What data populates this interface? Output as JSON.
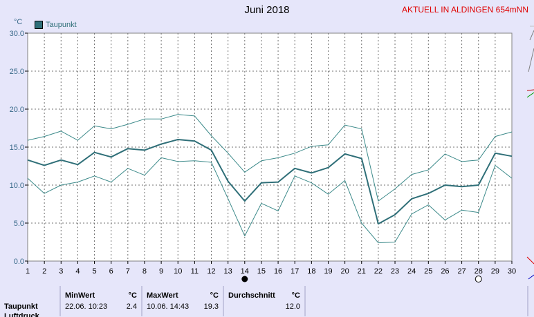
{
  "header": {
    "title": "Juni 2018",
    "live_label": "AKTUELL IN ALDINGEN 654mNN",
    "unit": "°C",
    "legend_label": "Taupunkt"
  },
  "colors": {
    "mean_line": "#2f6f78",
    "band_line": "#3c8a8a",
    "grid": "#707070",
    "plot_bg": "#ffffff"
  },
  "chart_data": {
    "type": "line",
    "xlabel": "",
    "ylabel": "°C",
    "xlim": [
      1,
      30
    ],
    "ylim": [
      0,
      30
    ],
    "x": [
      1,
      2,
      3,
      4,
      5,
      6,
      7,
      8,
      9,
      10,
      11,
      12,
      13,
      14,
      15,
      16,
      17,
      18,
      19,
      20,
      21,
      22,
      23,
      24,
      25,
      26,
      27,
      28,
      29,
      30
    ],
    "yticks": [
      "0.0",
      "5.0",
      "10.0",
      "15.0",
      "20.0",
      "25.0",
      "30.0"
    ],
    "series": [
      {
        "name": "Taupunkt",
        "values": [
          13.3,
          12.6,
          13.3,
          12.7,
          14.3,
          13.7,
          14.8,
          14.6,
          15.4,
          16.0,
          15.8,
          14.6,
          10.5,
          7.9,
          10.3,
          10.4,
          12.2,
          11.6,
          12.3,
          14.1,
          13.5,
          4.9,
          6.1,
          8.2,
          8.9,
          10.0,
          9.8,
          10.0,
          14.2,
          13.8
        ]
      },
      {
        "values": [
          15.9,
          16.4,
          17.1,
          15.9,
          17.8,
          17.4,
          18.0,
          18.7,
          18.7,
          19.3,
          19.1,
          16.5,
          14.2,
          11.7,
          13.2,
          13.6,
          14.2,
          15.1,
          15.3,
          17.9,
          17.4,
          7.9,
          9.5,
          11.4,
          12.0,
          14.1,
          13.1,
          13.3,
          16.4,
          17.0
        ]
      },
      {
        "values": [
          10.9,
          8.9,
          10.0,
          10.4,
          11.2,
          10.4,
          12.2,
          11.3,
          13.6,
          13.1,
          13.2,
          13.0,
          8.2,
          3.3,
          7.6,
          6.6,
          11.2,
          10.3,
          8.8,
          10.6,
          5.0,
          2.4,
          2.5,
          6.2,
          7.4,
          5.4,
          6.7,
          6.4,
          12.6,
          10.9
        ]
      }
    ],
    "markers": {
      "new_moon_day": 14,
      "full_moon_day": 28
    },
    "grid": true,
    "legend": "top-left"
  },
  "stats": {
    "row_label": "Taupunkt",
    "row_label_next": "Luftdruck",
    "min": {
      "header": "MinWert",
      "unit": "°C",
      "when": "22.06.  10:23",
      "value": "2.4"
    },
    "max": {
      "header": "MaxWert",
      "unit": "°C",
      "when": "10.06.  14:43",
      "value": "19.3"
    },
    "avg": {
      "header": "Durchschnitt",
      "unit": "°C",
      "value": "12.0"
    }
  }
}
